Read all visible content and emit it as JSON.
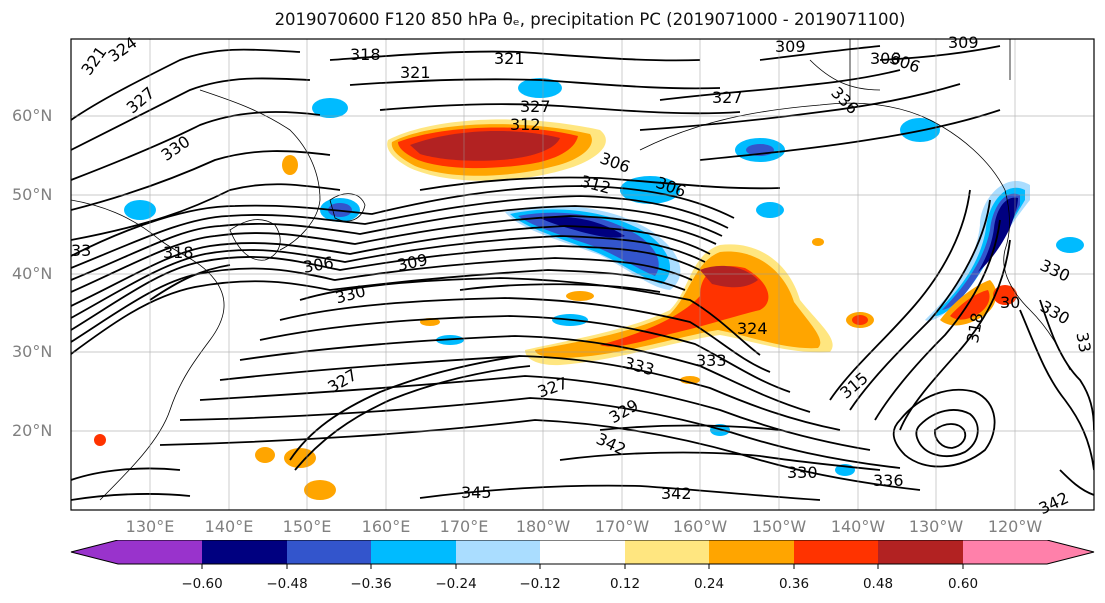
{
  "title": "2019070600 F120 850 hPa θₑ, precipitation PC (2019071000 - 2019071100)",
  "map": {
    "region": "North Pacific",
    "projection": "cylindrical",
    "lat_labels": [
      "60°N",
      "50°N",
      "40°N",
      "30°N",
      "20°N"
    ],
    "lon_labels": [
      "130°E",
      "140°E",
      "150°E",
      "160°E",
      "170°E",
      "180°W",
      "170°W",
      "160°W",
      "150°W",
      "140°W",
      "130°W",
      "120°W"
    ],
    "contour_variable": "850 hPa θₑ",
    "contour_labels": [
      "321",
      "324",
      "327",
      "330",
      "318",
      "321",
      "312",
      "309",
      "306",
      "327",
      "306",
      "318",
      "306",
      "309",
      "330",
      "309",
      "306",
      "333",
      "327",
      "324",
      "336",
      "333",
      "327",
      "329",
      "342",
      "345",
      "342",
      "330",
      "336",
      "342",
      "315",
      "318",
      "330",
      "312",
      "330",
      "306",
      "30",
      "321",
      "327",
      "33",
      "33"
    ],
    "shaded_variable": "precipitation PC"
  },
  "colorbar": {
    "ticks": [
      "−0.60",
      "−0.48",
      "−0.36",
      "−0.24",
      "−0.12",
      "0.12",
      "0.24",
      "0.36",
      "0.48",
      "0.60"
    ],
    "colors": [
      "#9933cc",
      "#000080",
      "#3355cc",
      "#00bbff",
      "#aaddff",
      "#ffffff",
      "#ffe680",
      "#ffa500",
      "#ff3300",
      "#b22222",
      "#ff80aa"
    ],
    "extend": "both"
  }
}
